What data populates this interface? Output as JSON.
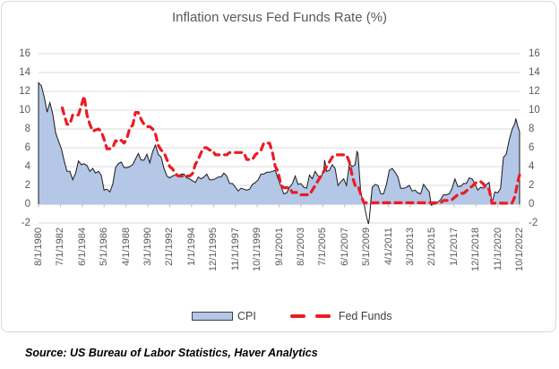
{
  "title": "Inflation versus Fed Funds Rate (%)",
  "source_note": "Source: US Bureau of Labor Statistics, Haver Analytics",
  "legend": {
    "cpi_label": "CPI",
    "fed_funds_label": "Fed Funds"
  },
  "colors": {
    "cpi_fill": "#b4c7e7",
    "cpi_outline": "#1a1a1a",
    "fed_funds_red": "#ea1c24",
    "gridline": "#d9d9d9",
    "axis_line": "#bfbfbf",
    "text_gray": "#595959"
  },
  "chart_data": {
    "type": "area+line combo",
    "title": "Inflation versus Fed Funds Rate (%)",
    "xlabel": "",
    "ylabel": "",
    "ylim": [
      -2,
      16
    ],
    "y_ticks": [
      -2,
      0,
      2,
      4,
      6,
      8,
      10,
      12,
      14,
      16
    ],
    "y_axis_sides": [
      "left",
      "right"
    ],
    "grid": true,
    "legend_position": "bottom",
    "x_is_monthly_from": "8/1/1980",
    "x_total_months": 506,
    "x_tick_month_step": 23,
    "x_tick_labels": [
      "8/1/1980",
      "7/1/1982",
      "6/1/1984",
      "5/1/1986",
      "4/1/1988",
      "3/1/1990",
      "2/1/1992",
      "1/1/1994",
      "12/1/1995",
      "11/1/1997",
      "10/1/1999",
      "9/1/2001",
      "8/1/2003",
      "7/1/2005",
      "6/1/2007",
      "5/1/2009",
      "4/1/2011",
      "3/1/2013",
      "2/1/2015",
      "1/1/2017",
      "12/1/2018",
      "11/1/2020",
      "10/1/2022"
    ],
    "series": [
      {
        "name": "CPI",
        "type": "area",
        "fill": "#b4c7e7",
        "outline": "#1a1a1a",
        "points_month_value": [
          [
            0,
            12.9
          ],
          [
            3,
            12.6
          ],
          [
            6,
            11.4
          ],
          [
            9,
            9.8
          ],
          [
            12,
            10.8
          ],
          [
            15,
            9.6
          ],
          [
            18,
            7.6
          ],
          [
            21,
            6.7
          ],
          [
            24,
            5.9
          ],
          [
            27,
            4.6
          ],
          [
            30,
            3.5
          ],
          [
            33,
            3.5
          ],
          [
            36,
            2.6
          ],
          [
            39,
            3.3
          ],
          [
            42,
            4.6
          ],
          [
            45,
            4.2
          ],
          [
            48,
            4.3
          ],
          [
            51,
            4.1
          ],
          [
            54,
            3.5
          ],
          [
            57,
            3.8
          ],
          [
            60,
            3.3
          ],
          [
            63,
            3.5
          ],
          [
            66,
            3.1
          ],
          [
            69,
            1.5
          ],
          [
            72,
            1.6
          ],
          [
            75,
            1.3
          ],
          [
            78,
            2.1
          ],
          [
            81,
            3.9
          ],
          [
            84,
            4.3
          ],
          [
            87,
            4.5
          ],
          [
            90,
            3.9
          ],
          [
            93,
            3.9
          ],
          [
            96,
            4.0
          ],
          [
            99,
            4.2
          ],
          [
            102,
            4.8
          ],
          [
            105,
            5.4
          ],
          [
            108,
            4.7
          ],
          [
            111,
            4.7
          ],
          [
            114,
            5.3
          ],
          [
            117,
            4.4
          ],
          [
            120,
            5.6
          ],
          [
            123,
            6.3
          ],
          [
            126,
            5.3
          ],
          [
            129,
            5.0
          ],
          [
            132,
            3.8
          ],
          [
            135,
            3.0
          ],
          [
            138,
            2.8
          ],
          [
            141,
            3.0
          ],
          [
            144,
            3.1
          ],
          [
            147,
            3.0
          ],
          [
            150,
            3.2
          ],
          [
            153,
            3.2
          ],
          [
            156,
            2.8
          ],
          [
            159,
            2.7
          ],
          [
            162,
            2.5
          ],
          [
            165,
            2.3
          ],
          [
            168,
            2.9
          ],
          [
            171,
            2.7
          ],
          [
            174,
            2.9
          ],
          [
            177,
            3.2
          ],
          [
            180,
            2.6
          ],
          [
            183,
            2.6
          ],
          [
            186,
            2.7
          ],
          [
            189,
            2.9
          ],
          [
            192,
            2.9
          ],
          [
            195,
            3.3
          ],
          [
            198,
            3.0
          ],
          [
            201,
            2.2
          ],
          [
            204,
            2.2
          ],
          [
            207,
            1.8
          ],
          [
            210,
            1.4
          ],
          [
            213,
            1.7
          ],
          [
            216,
            1.6
          ],
          [
            219,
            1.5
          ],
          [
            222,
            1.6
          ],
          [
            225,
            2.1
          ],
          [
            228,
            2.3
          ],
          [
            231,
            2.6
          ],
          [
            234,
            3.2
          ],
          [
            237,
            3.2
          ],
          [
            240,
            3.4
          ],
          [
            243,
            3.4
          ],
          [
            246,
            3.5
          ],
          [
            249,
            3.6
          ],
          [
            252,
            2.7
          ],
          [
            255,
            1.9
          ],
          [
            258,
            1.1
          ],
          [
            261,
            1.2
          ],
          [
            264,
            1.8
          ],
          [
            267,
            2.2
          ],
          [
            270,
            3.0
          ],
          [
            273,
            2.1
          ],
          [
            276,
            2.2
          ],
          [
            279,
            1.8
          ],
          [
            282,
            1.7
          ],
          [
            285,
            3.1
          ],
          [
            288,
            2.7
          ],
          [
            291,
            3.5
          ],
          [
            294,
            3.0
          ],
          [
            297,
            2.8
          ],
          [
            300,
            3.6
          ],
          [
            301,
            4.7
          ],
          [
            303,
            3.5
          ],
          [
            306,
            3.6
          ],
          [
            309,
            4.2
          ],
          [
            312,
            3.8
          ],
          [
            315,
            2.0
          ],
          [
            318,
            2.4
          ],
          [
            321,
            2.7
          ],
          [
            324,
            2.0
          ],
          [
            327,
            4.3
          ],
          [
            330,
            4.0
          ],
          [
            333,
            4.2
          ],
          [
            335,
            5.6
          ],
          [
            336,
            5.4
          ],
          [
            339,
            1.1
          ],
          [
            342,
            0.2
          ],
          [
            345,
            -1.3
          ],
          [
            347,
            -2.1
          ],
          [
            348,
            -1.5
          ],
          [
            351,
            1.8
          ],
          [
            354,
            2.1
          ],
          [
            357,
            2.0
          ],
          [
            360,
            1.1
          ],
          [
            363,
            1.1
          ],
          [
            366,
            2.1
          ],
          [
            369,
            3.6
          ],
          [
            372,
            3.8
          ],
          [
            375,
            3.4
          ],
          [
            378,
            2.9
          ],
          [
            381,
            1.7
          ],
          [
            384,
            1.7
          ],
          [
            387,
            1.8
          ],
          [
            390,
            2.0
          ],
          [
            393,
            1.4
          ],
          [
            396,
            1.5
          ],
          [
            399,
            1.2
          ],
          [
            402,
            1.1
          ],
          [
            405,
            2.1
          ],
          [
            408,
            1.7
          ],
          [
            411,
            1.3
          ],
          [
            413,
            -0.1
          ],
          [
            414,
            0.0
          ],
          [
            417,
            0.0
          ],
          [
            420,
            0.2
          ],
          [
            423,
            0.5
          ],
          [
            426,
            1.0
          ],
          [
            429,
            1.0
          ],
          [
            432,
            1.1
          ],
          [
            435,
            1.7
          ],
          [
            438,
            2.7
          ],
          [
            441,
            1.9
          ],
          [
            444,
            1.9
          ],
          [
            447,
            2.2
          ],
          [
            450,
            2.2
          ],
          [
            453,
            2.8
          ],
          [
            456,
            2.7
          ],
          [
            459,
            2.2
          ],
          [
            462,
            1.5
          ],
          [
            465,
            1.8
          ],
          [
            468,
            1.7
          ],
          [
            471,
            2.1
          ],
          [
            474,
            2.3
          ],
          [
            477,
            0.1
          ],
          [
            480,
            1.3
          ],
          [
            483,
            1.2
          ],
          [
            486,
            1.7
          ],
          [
            489,
            5.0
          ],
          [
            492,
            5.3
          ],
          [
            495,
            6.8
          ],
          [
            498,
            7.9
          ],
          [
            501,
            8.6
          ],
          [
            502,
            9.1
          ],
          [
            504,
            8.3
          ],
          [
            506,
            7.7
          ]
        ]
      },
      {
        "name": "Fed Funds",
        "type": "dashed-line",
        "color": "#ea1c24",
        "points_month_value": [
          [
            25,
            10.25
          ],
          [
            27,
            9.5
          ],
          [
            30,
            8.5
          ],
          [
            33,
            8.5
          ],
          [
            36,
            9.5
          ],
          [
            39,
            9.5
          ],
          [
            42,
            9.5
          ],
          [
            45,
            10.5
          ],
          [
            48,
            11.5
          ],
          [
            51,
            9.5
          ],
          [
            54,
            8.5
          ],
          [
            57,
            7.75
          ],
          [
            60,
            7.9
          ],
          [
            63,
            8.0
          ],
          [
            66,
            7.75
          ],
          [
            69,
            6.9
          ],
          [
            72,
            5.9
          ],
          [
            75,
            5.9
          ],
          [
            78,
            6.0
          ],
          [
            81,
            6.75
          ],
          [
            84,
            6.6
          ],
          [
            87,
            6.8
          ],
          [
            90,
            6.5
          ],
          [
            93,
            7.0
          ],
          [
            96,
            8.1
          ],
          [
            99,
            8.4
          ],
          [
            102,
            9.75
          ],
          [
            105,
            9.75
          ],
          [
            108,
            9.0
          ],
          [
            111,
            8.5
          ],
          [
            114,
            8.25
          ],
          [
            117,
            8.25
          ],
          [
            120,
            8.0
          ],
          [
            123,
            7.5
          ],
          [
            126,
            6.25
          ],
          [
            129,
            5.75
          ],
          [
            132,
            5.5
          ],
          [
            135,
            4.75
          ],
          [
            138,
            4.0
          ],
          [
            141,
            3.75
          ],
          [
            144,
            3.25
          ],
          [
            147,
            3.0
          ],
          [
            159,
            3.0
          ],
          [
            162,
            3.25
          ],
          [
            165,
            4.25
          ],
          [
            168,
            4.75
          ],
          [
            171,
            5.5
          ],
          [
            174,
            6.0
          ],
          [
            177,
            6.0
          ],
          [
            180,
            5.75
          ],
          [
            183,
            5.75
          ],
          [
            186,
            5.25
          ],
          [
            198,
            5.25
          ],
          [
            201,
            5.5
          ],
          [
            216,
            5.5
          ],
          [
            219,
            4.75
          ],
          [
            225,
            4.75
          ],
          [
            228,
            5.25
          ],
          [
            231,
            5.5
          ],
          [
            234,
            5.75
          ],
          [
            237,
            6.5
          ],
          [
            243,
            6.5
          ],
          [
            246,
            5.5
          ],
          [
            249,
            4.0
          ],
          [
            252,
            3.5
          ],
          [
            255,
            2.0
          ],
          [
            258,
            1.75
          ],
          [
            264,
            1.75
          ],
          [
            267,
            1.25
          ],
          [
            273,
            1.25
          ],
          [
            276,
            1.0
          ],
          [
            285,
            1.0
          ],
          [
            288,
            1.5
          ],
          [
            291,
            2.0
          ],
          [
            294,
            2.5
          ],
          [
            297,
            3.0
          ],
          [
            300,
            3.5
          ],
          [
            303,
            4.0
          ],
          [
            306,
            4.5
          ],
          [
            309,
            5.0
          ],
          [
            312,
            5.25
          ],
          [
            324,
            5.25
          ],
          [
            327,
            4.5
          ],
          [
            330,
            3.0
          ],
          [
            333,
            2.0
          ],
          [
            336,
            2.0
          ],
          [
            339,
            1.0
          ],
          [
            342,
            0.2
          ],
          [
            345,
            0.15
          ],
          [
            423,
            0.15
          ],
          [
            426,
            0.4
          ],
          [
            432,
            0.4
          ],
          [
            435,
            0.5
          ],
          [
            438,
            0.75
          ],
          [
            441,
            1.0
          ],
          [
            444,
            1.15
          ],
          [
            447,
            1.15
          ],
          [
            450,
            1.4
          ],
          [
            453,
            1.7
          ],
          [
            456,
            1.9
          ],
          [
            459,
            2.2
          ],
          [
            462,
            2.4
          ],
          [
            465,
            2.4
          ],
          [
            468,
            2.15
          ],
          [
            471,
            1.6
          ],
          [
            474,
            1.6
          ],
          [
            477,
            0.1
          ],
          [
            498,
            0.1
          ],
          [
            501,
            0.8
          ],
          [
            504,
            2.35
          ],
          [
            506,
            3.1
          ]
        ]
      }
    ]
  }
}
